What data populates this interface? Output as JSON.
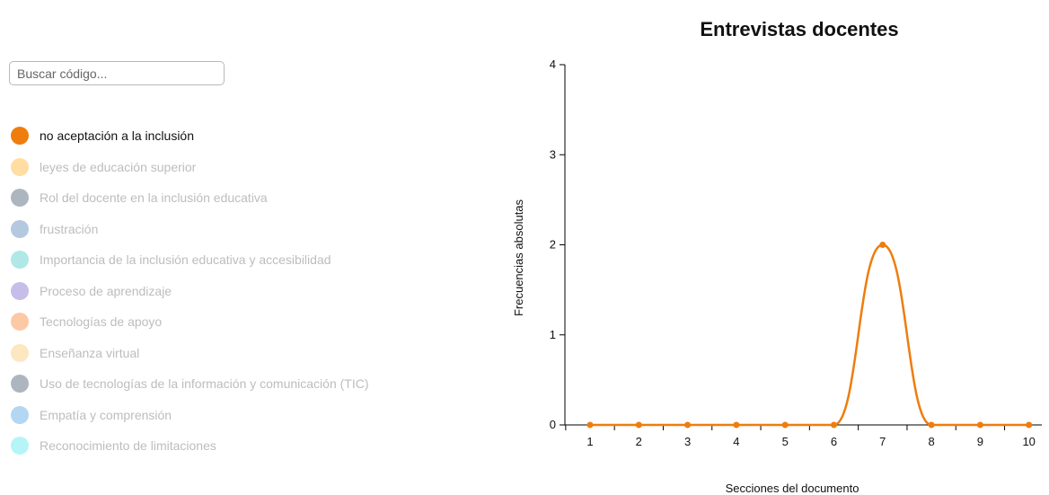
{
  "search": {
    "placeholder": "Buscar código..."
  },
  "legend": [
    {
      "label": "no aceptación a la inclusión",
      "color": "#ee7d0e",
      "active": true
    },
    {
      "label": "leyes de educación superior",
      "color": "#ffdda3",
      "active": false
    },
    {
      "label": "Rol del docente en la inclusión educativa",
      "color": "#adb6bf",
      "active": false
    },
    {
      "label": "frustración",
      "color": "#b4c9e0",
      "active": false
    },
    {
      "label": "Importancia de la inclusión educativa y accesibilidad",
      "color": "#b0e7e7",
      "active": false
    },
    {
      "label": "Proceso de aprendizaje",
      "color": "#c6bde9",
      "active": false
    },
    {
      "label": "Tecnologías de apoyo",
      "color": "#fcc9a4",
      "active": false
    },
    {
      "label": "Enseñanza virtual",
      "color": "#fde7c1",
      "active": false
    },
    {
      "label": "Uso de tecnologías de la información y comunicación (TIC)",
      "color": "#adb6bf",
      "active": false
    },
    {
      "label": "Empatía y comprensión",
      "color": "#b3d6f2",
      "active": false
    },
    {
      "label": "Reconocimiento de limitaciones",
      "color": "#b5f5f7",
      "active": false
    }
  ],
  "chart_data": {
    "type": "line",
    "title": "Entrevistas docentes",
    "xlabel": "Secciones del documento",
    "ylabel": "Frecuencias absolutas",
    "x": [
      1,
      2,
      3,
      4,
      5,
      6,
      7,
      8,
      9,
      10
    ],
    "ylim": [
      0,
      4
    ],
    "yticks": [
      0,
      1,
      2,
      3,
      4
    ],
    "grid": false,
    "series": [
      {
        "values": [
          0,
          0,
          0,
          0,
          0,
          0,
          2,
          0,
          0,
          0
        ],
        "color": "#ee7d0e"
      }
    ]
  }
}
